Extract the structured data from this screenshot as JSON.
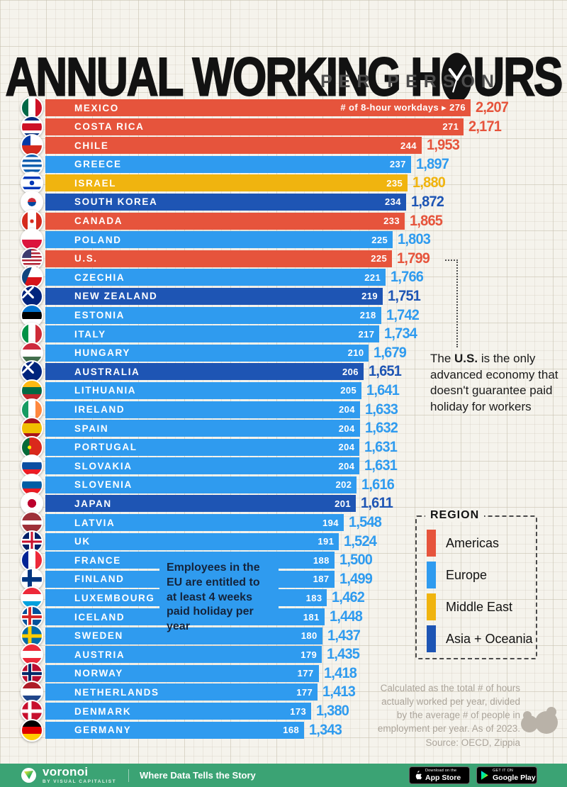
{
  "title": {
    "part1": "ANNUAL WORKING H",
    "part2": "URS",
    "full": "ANNUAL WORKING HOURS",
    "subtitle": "PER PERSON"
  },
  "chart_data": {
    "type": "bar",
    "title": "Annual Working Hours Per Person",
    "unit": "hours actually worked per person per year",
    "secondary_unit_label": "# of 8-hour workdays ▸",
    "xlim": [
      0,
      2207
    ],
    "legend_title": "REGION",
    "legend_position": "right-middle",
    "regions": [
      {
        "name": "Americas",
        "color": "#E6543C"
      },
      {
        "name": "Europe",
        "color": "#2F9BEF"
      },
      {
        "name": "Middle East",
        "color": "#F0B40F"
      },
      {
        "name": "Asia + Oceania",
        "color": "#1E55B4"
      }
    ],
    "rows": [
      {
        "country": "MEXICO",
        "region": "Americas",
        "workdays": 276,
        "hours_label": "2,207",
        "value": 2207,
        "flag": "linear-gradient(to right,#006847 33%,#fff 33% 67%,#ce1126 67%)"
      },
      {
        "country": "COSTA RICA",
        "region": "Americas",
        "workdays": 271,
        "hours_label": "2,171",
        "value": 2171,
        "flag": "linear-gradient(to bottom,#002b7f 17%,#fff 17% 33%,#ce1126 33% 67%,#fff 67% 83%,#002b7f 83%)"
      },
      {
        "country": "CHILE",
        "region": "Americas",
        "workdays": 244,
        "hours_label": "1,953",
        "value": 1953,
        "flag": "linear-gradient(to bottom,rgba(0,0,0,0) 50%,#d52b1e 50%),linear-gradient(to right,#0039a6 42%,#fff 42%)"
      },
      {
        "country": "GREECE",
        "region": "Europe",
        "workdays": 237,
        "hours_label": "1,897",
        "value": 1897,
        "flag": "repeating-linear-gradient(to bottom,#0d5eaf 0 3.5px,#fff 3.5px 7px)"
      },
      {
        "country": "ISRAEL",
        "region": "Middle East",
        "workdays": 235,
        "hours_label": "1,880",
        "value": 1880,
        "flag": "radial-gradient(circle at 50% 50%,#0038b8 16%,rgba(0,0,0,0) 17%),linear-gradient(to bottom,#fff 18%,#0038b8 18% 31%,#fff 31% 69%,#0038b8 69% 82%,#fff 82%)"
      },
      {
        "country": "SOUTH KOREA",
        "region": "Asia + Oceania",
        "workdays": 234,
        "hours_label": "1,872",
        "value": 1872,
        "flag": "radial-gradient(circle at 50% 50%,rgba(0,0,0,0) 29%,#fff 30%),linear-gradient(to bottom,#cd2e3a 50%,#0047a0 50%)"
      },
      {
        "country": "CANADA",
        "region": "Americas",
        "workdays": 233,
        "hours_label": "1,865",
        "value": 1865,
        "flag": "radial-gradient(circle at 50% 50%,#d52b1e 13%,rgba(0,0,0,0) 14%),linear-gradient(to right,#d52b1e 28%,#fff 28% 72%,#d52b1e 72%)"
      },
      {
        "country": "POLAND",
        "region": "Europe",
        "workdays": 225,
        "hours_label": "1,803",
        "value": 1803,
        "flag": "linear-gradient(to bottom,#fff 50%,#dc143c 50%)"
      },
      {
        "country": "U.S.",
        "region": "Americas",
        "workdays": 225,
        "hours_label": "1,799",
        "value": 1799,
        "flag": "linear-gradient(to right,#3c3b6e 46%,rgba(0,0,0,0) 46%) 0 0/100% 46% no-repeat,repeating-linear-gradient(to bottom,#b22234 0 2.5px,#fff 2.5px 5px)"
      },
      {
        "country": "CZECHIA",
        "region": "Europe",
        "workdays": 221,
        "hours_label": "1,766",
        "value": 1766,
        "flag": "linear-gradient(112deg,#11457e 35%,rgba(0,0,0,0) 35.5%),linear-gradient(to bottom,#fff 50%,#d7141a 50%)"
      },
      {
        "country": "NEW ZEALAND",
        "region": "Asia + Oceania",
        "workdays": 219,
        "hours_label": "1,751",
        "value": 1751,
        "flag": "linear-gradient(45deg,rgba(0,0,0,0) 44%,#fff 44% 56%,rgba(0,0,0,0) 56%) 0 0/60% 60% no-repeat,linear-gradient(135deg,rgba(0,0,0,0) 44%,#fff 44% 56%,rgba(0,0,0,0) 56%) 0 0/60% 60% no-repeat,#00247d"
      },
      {
        "country": "ESTONIA",
        "region": "Europe",
        "workdays": 218,
        "hours_label": "1,742",
        "value": 1742,
        "flag": "linear-gradient(to bottom,#0072ce 33%,#000 33% 67%,#fff 67%)"
      },
      {
        "country": "ITALY",
        "region": "Europe",
        "workdays": 217,
        "hours_label": "1,734",
        "value": 1734,
        "flag": "linear-gradient(to right,#009246 33%,#fff 33% 67%,#ce2b37 67%)"
      },
      {
        "country": "HUNGARY",
        "region": "Europe",
        "workdays": 210,
        "hours_label": "1,679",
        "value": 1679,
        "flag": "linear-gradient(to bottom,#cd2a3e 33%,#fff 33% 67%,#436f4d 67%)"
      },
      {
        "country": "AUSTRALIA",
        "region": "Asia + Oceania",
        "workdays": 206,
        "hours_label": "1,651",
        "value": 1651,
        "flag": "linear-gradient(45deg,rgba(0,0,0,0) 44%,#fff 44% 56%,rgba(0,0,0,0) 56%) 0 0/60% 60% no-repeat,linear-gradient(135deg,rgba(0,0,0,0) 44%,#fff 44% 56%,rgba(0,0,0,0) 56%) 0 0/60% 60% no-repeat,#00247d"
      },
      {
        "country": "LITHUANIA",
        "region": "Europe",
        "workdays": 205,
        "hours_label": "1,641",
        "value": 1641,
        "flag": "linear-gradient(to bottom,#fdb913 33%,#006a44 33% 67%,#c1272d 67%)"
      },
      {
        "country": "IRELAND",
        "region": "Europe",
        "workdays": 204,
        "hours_label": "1,633",
        "value": 1633,
        "flag": "linear-gradient(to right,#169b62 33%,#fff 33% 67%,#ff883e 67%)"
      },
      {
        "country": "SPAIN",
        "region": "Europe",
        "workdays": 204,
        "hours_label": "1,632",
        "value": 1632,
        "flag": "linear-gradient(to bottom,#aa151b 25%,#f1bf00 25% 75%,#aa151b 75%)"
      },
      {
        "country": "PORTUGAL",
        "region": "Europe",
        "workdays": 204,
        "hours_label": "1,631",
        "value": 1631,
        "flag": "radial-gradient(circle at 38% 50%,#ffe900 11%,rgba(0,0,0,0) 12%),linear-gradient(to right,#046a38 38%,#da291c 38%)"
      },
      {
        "country": "SLOVAKIA",
        "region": "Europe",
        "workdays": 204,
        "hours_label": "1,631",
        "value": 1631,
        "flag": "linear-gradient(to bottom,#fff 33%,#0b4ea2 33% 67%,#ee1c25 67%)"
      },
      {
        "country": "SLOVENIA",
        "region": "Europe",
        "workdays": 202,
        "hours_label": "1,616",
        "value": 1616,
        "flag": "linear-gradient(to bottom,#fff 33%,#005da4 33% 67%,#ed1c24 67%)"
      },
      {
        "country": "JAPAN",
        "region": "Asia + Oceania",
        "workdays": 201,
        "hours_label": "1,611",
        "value": 1611,
        "flag": "radial-gradient(circle at 50% 50%,#bc002d 30%,#fff 31%)"
      },
      {
        "country": "LATVIA",
        "region": "Europe",
        "workdays": 194,
        "hours_label": "1,548",
        "value": 1548,
        "flag": "linear-gradient(to bottom,#9e3039 40%,#fff 40% 60%,#9e3039 60%)"
      },
      {
        "country": "UK",
        "region": "Europe",
        "workdays": 191,
        "hours_label": "1,524",
        "value": 1524,
        "flag": "linear-gradient(to right,rgba(0,0,0,0) 44%,#c8102e 44% 56%,rgba(0,0,0,0) 56%),linear-gradient(to bottom,rgba(0,0,0,0) 44%,#c8102e 44% 56%,rgba(0,0,0,0) 56%),linear-gradient(to right,rgba(0,0,0,0) 36%,#fff 36% 64%,rgba(0,0,0,0) 64%),linear-gradient(to bottom,rgba(0,0,0,0) 36%,#fff 36% 64%,rgba(0,0,0,0) 64%),#012169"
      },
      {
        "country": "FRANCE",
        "region": "Europe",
        "workdays": 188,
        "hours_label": "1,500",
        "value": 1500,
        "flag": "linear-gradient(to right,#002395 33%,#fff 33% 67%,#ed2939 67%)"
      },
      {
        "country": "FINLAND",
        "region": "Europe",
        "workdays": 187,
        "hours_label": "1,499",
        "value": 1499,
        "flag": "linear-gradient(to bottom,rgba(0,0,0,0) 40%,#003580 40% 62%,rgba(0,0,0,0) 62%),linear-gradient(to right,rgba(0,0,0,0) 28%,#003580 28% 50%,rgba(0,0,0,0) 50%),#fff"
      },
      {
        "country": "LUXEMBOURG",
        "region": "Europe",
        "workdays": 183,
        "hours_label": "1,462",
        "value": 1462,
        "flag": "linear-gradient(to bottom,#ed2939 33%,#fff 33% 67%,#00a1de 67%)"
      },
      {
        "country": "ICELAND",
        "region": "Europe",
        "workdays": 181,
        "hours_label": "1,448",
        "value": 1448,
        "flag": "linear-gradient(to right,rgba(0,0,0,0) 32%,#d72828 32% 46%,rgba(0,0,0,0) 46%),linear-gradient(to bottom,rgba(0,0,0,0) 43%,#d72828 43% 57%,rgba(0,0,0,0) 57%),linear-gradient(to right,rgba(0,0,0,0) 25%,#fff 25% 53%,rgba(0,0,0,0) 53%),linear-gradient(to bottom,rgba(0,0,0,0) 36%,#fff 36% 64%,rgba(0,0,0,0) 64%),#02529c"
      },
      {
        "country": "SWEDEN",
        "region": "Europe",
        "workdays": 180,
        "hours_label": "1,437",
        "value": 1437,
        "flag": "linear-gradient(to right,rgba(0,0,0,0) 30%,#fecc02 30% 48%,rgba(0,0,0,0) 48%),linear-gradient(to bottom,rgba(0,0,0,0) 41%,#fecc02 41% 59%,rgba(0,0,0,0) 59%),#006aa7"
      },
      {
        "country": "AUSTRIA",
        "region": "Europe",
        "workdays": 179,
        "hours_label": "1,435",
        "value": 1435,
        "flag": "linear-gradient(to bottom,#ed2939 33%,#fff 33% 67%,#ed2939 67%)"
      },
      {
        "country": "NORWAY",
        "region": "Europe",
        "workdays": 177,
        "hours_label": "1,418",
        "value": 1418,
        "flag": "linear-gradient(to right,rgba(0,0,0,0) 32%,#002868 32% 46%,rgba(0,0,0,0) 46%),linear-gradient(to bottom,rgba(0,0,0,0) 43%,#002868 43% 57%,rgba(0,0,0,0) 57%),linear-gradient(to right,rgba(0,0,0,0) 26%,#fff 26% 52%,rgba(0,0,0,0) 52%),linear-gradient(to bottom,rgba(0,0,0,0) 37%,#fff 37% 63%,rgba(0,0,0,0) 63%),#ba0c2f"
      },
      {
        "country": "NETHERLANDS",
        "region": "Europe",
        "workdays": 177,
        "hours_label": "1,413",
        "value": 1413,
        "flag": "linear-gradient(to bottom,#ae1c28 33%,#fff 33% 67%,#21468b 67%)"
      },
      {
        "country": "DENMARK",
        "region": "Europe",
        "workdays": 173,
        "hours_label": "1,380",
        "value": 1380,
        "flag": "linear-gradient(to right,rgba(0,0,0,0) 30%,#fff 30% 48%,rgba(0,0,0,0) 48%),linear-gradient(to bottom,rgba(0,0,0,0) 41%,#fff 41% 59%,rgba(0,0,0,0) 59%),#c8102e"
      },
      {
        "country": "GERMANY",
        "region": "Europe",
        "workdays": 168,
        "hours_label": "1,343",
        "value": 1343,
        "flag": "linear-gradient(to bottom,#000 33%,#dd0000 33% 67%,#ffce00 67%)"
      }
    ]
  },
  "annotations": {
    "us": {
      "pre": "The ",
      "bold": "U.S.",
      "post": " is the only advanced economy that doesn't guarantee paid holiday for workers"
    },
    "eu": {
      "pre": "Employees in the ",
      "bold": "EU",
      "post": " are entitled to at least 4 weeks paid holiday per year"
    }
  },
  "source_note": {
    "lines": [
      "Calculated as the total # of hours",
      "actually worked per year, divided",
      "by the average # of people in",
      "employment per year. As of 2023.",
      "Source: OECD, Zippia"
    ]
  },
  "footer": {
    "brand": "voronoi",
    "brand_sub": "BY VISUAL CAPITALIST",
    "tagline": "Where Data Tells the Story",
    "appstore_top": "Download on the",
    "appstore_bottom": "App Store",
    "gplay_top": "GET IT ON",
    "gplay_bottom": "Google Play",
    "bg_color": "#3ba374"
  }
}
